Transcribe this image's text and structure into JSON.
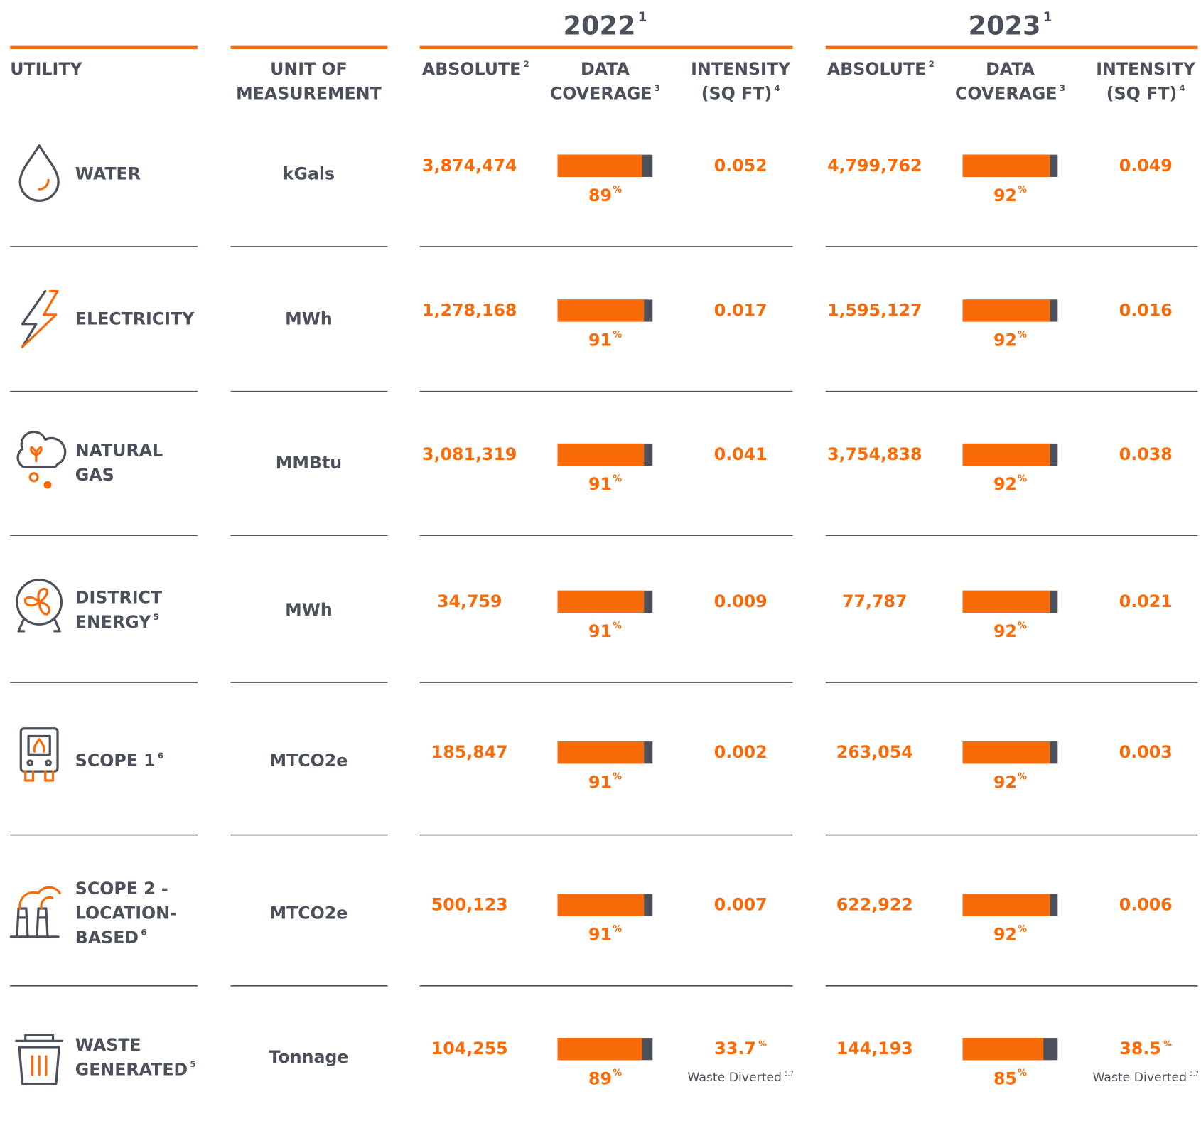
{
  "header": {
    "utility": "UTILITY",
    "unit": [
      "UNIT OF",
      "MEASUREMENT"
    ],
    "years": [
      {
        "year": "2022",
        "note": "1"
      },
      {
        "year": "2023",
        "note": "1"
      }
    ],
    "columns": {
      "absolute": {
        "lines": [
          "ABSOLUTE"
        ],
        "note": "2"
      },
      "coverage": {
        "lines": [
          "DATA",
          "COVERAGE"
        ],
        "note": "3"
      },
      "intensity": {
        "lines": [
          "INTENSITY",
          "(SQ FT)"
        ],
        "note": "4"
      }
    }
  },
  "coverage_unit": "%",
  "coverage_lim": [
    0,
    100
  ],
  "rows": [
    {
      "lines": [
        "WATER"
      ],
      "unit": "kGals",
      "years": [
        {
          "absolute": "3,874,474",
          "coverage": 89,
          "intensity": "0.052"
        },
        {
          "absolute": "4,799,762",
          "coverage": 92,
          "intensity": "0.049"
        }
      ]
    },
    {
      "lines": [
        "ELECTRICITY"
      ],
      "unit": "MWh",
      "years": [
        {
          "absolute": "1,278,168",
          "coverage": 91,
          "intensity": "0.017"
        },
        {
          "absolute": "1,595,127",
          "coverage": 92,
          "intensity": "0.016"
        }
      ]
    },
    {
      "lines": [
        "NATURAL",
        "GAS"
      ],
      "unit": "MMBtu",
      "years": [
        {
          "absolute": "3,081,319",
          "coverage": 91,
          "intensity": "0.041"
        },
        {
          "absolute": "3,754,838",
          "coverage": 92,
          "intensity": "0.038"
        }
      ]
    },
    {
      "lines": [
        "DISTRICT",
        "ENERGY"
      ],
      "note": "5",
      "unit": "MWh",
      "years": [
        {
          "absolute": "34,759",
          "coverage": 91,
          "intensity": "0.009"
        },
        {
          "absolute": "77,787",
          "coverage": 92,
          "intensity": "0.021"
        }
      ]
    },
    {
      "lines": [
        "SCOPE 1"
      ],
      "note": "6",
      "unit": "MTCO2e",
      "years": [
        {
          "absolute": "185,847",
          "coverage": 91,
          "intensity": "0.002"
        },
        {
          "absolute": "263,054",
          "coverage": 92,
          "intensity": "0.003"
        }
      ]
    },
    {
      "lines": [
        "SCOPE 2 -",
        "LOCATION-",
        "BASED"
      ],
      "note": "6",
      "unit": "MTCO2e",
      "years": [
        {
          "absolute": "500,123",
          "coverage": 91,
          "intensity": "0.007"
        },
        {
          "absolute": "622,922",
          "coverage": 92,
          "intensity": "0.006"
        }
      ]
    },
    {
      "lines": [
        "WASTE",
        "GENERATED"
      ],
      "note": "5",
      "unit": "Tonnage",
      "years": [
        {
          "absolute": "104,255",
          "coverage": 89,
          "intensity": "33.7",
          "intensity_unit": "%",
          "intensity_note": {
            "text": "Waste Diverted",
            "note": "5,7"
          }
        },
        {
          "absolute": "144,193",
          "coverage": 85,
          "intensity": "38.5",
          "intensity_unit": "%",
          "intensity_note": {
            "text": "Waste Diverted",
            "note": "5,7"
          }
        }
      ]
    }
  ]
}
